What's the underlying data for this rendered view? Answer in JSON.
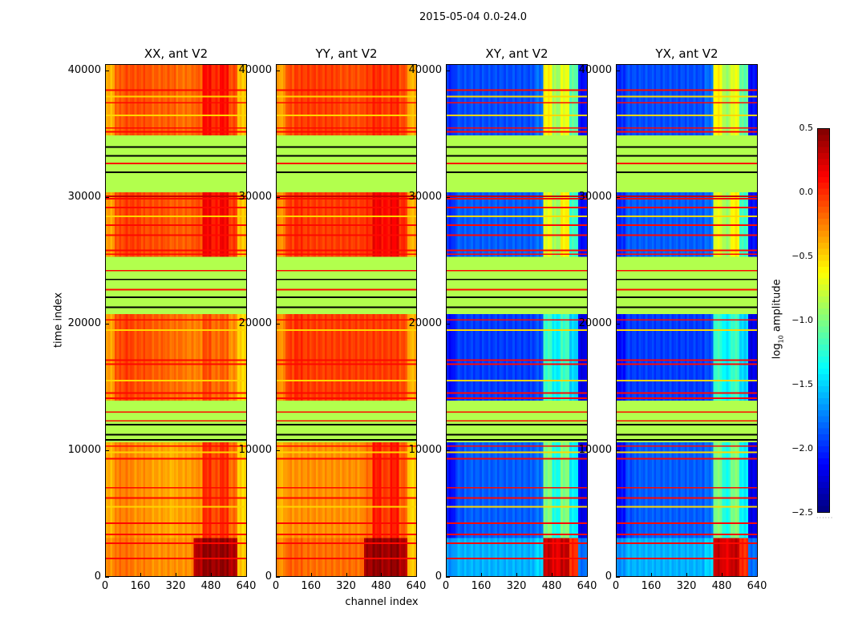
{
  "chart_data": {
    "type": "heatmap",
    "title": "2015-05-04 0.0-24.0",
    "xlabel": "channel index",
    "ylabel": "time index",
    "xlim": [
      0,
      640
    ],
    "ylim": [
      0,
      40500
    ],
    "xticks": [
      0,
      160,
      320,
      480,
      640
    ],
    "yticks": [
      0,
      10000,
      20000,
      30000,
      40000
    ],
    "channel_block": 40,
    "flag_value": -0.85,
    "segments": [
      {
        "t": [
          34900,
          40500
        ],
        "kind": "data",
        "id": "A"
      },
      {
        "t": [
          30400,
          34900
        ],
        "kind": "flag"
      },
      {
        "t": [
          25300,
          30400
        ],
        "kind": "data",
        "id": "B"
      },
      {
        "t": [
          20750,
          25300
        ],
        "kind": "flag"
      },
      {
        "t": [
          13900,
          20750
        ],
        "kind": "data",
        "id": "C"
      },
      {
        "t": [
          10600,
          13900
        ],
        "kind": "flag"
      },
      {
        "t": [
          3000,
          10600
        ],
        "kind": "data",
        "id": "D"
      },
      {
        "t": [
          0,
          3000
        ],
        "kind": "data",
        "id": "E"
      }
    ],
    "panels": [
      {
        "title": "XX, ant V2",
        "profiles": {
          "A": [
            -0.4,
            -0.15,
            -0.1,
            -0.1,
            -0.1,
            -0.15,
            -0.15,
            -0.15,
            -0.2,
            -0.2,
            -0.15,
            0.1,
            0.0,
            0.1,
            -0.1,
            -0.45
          ],
          "B": [
            -0.35,
            -0.1,
            -0.05,
            -0.05,
            -0.1,
            -0.1,
            -0.1,
            -0.15,
            -0.15,
            -0.15,
            -0.1,
            0.15,
            0.05,
            0.15,
            -0.05,
            -0.45
          ],
          "C": [
            -0.35,
            -0.1,
            -0.05,
            -0.1,
            -0.1,
            -0.15,
            -0.15,
            -0.2,
            -0.2,
            -0.25,
            -0.25,
            -0.1,
            -0.2,
            -0.15,
            -0.3,
            -0.5
          ],
          "D": [
            -0.4,
            -0.25,
            -0.25,
            -0.3,
            -0.3,
            -0.35,
            -0.35,
            -0.4,
            -0.35,
            -0.35,
            -0.3,
            0.0,
            -0.1,
            0.0,
            -0.2,
            -0.5
          ],
          "E": [
            -0.3,
            -0.2,
            -0.2,
            -0.25,
            -0.25,
            -0.3,
            -0.3,
            -0.3,
            -0.3,
            -0.3,
            0.35,
            0.45,
            0.4,
            0.45,
            0.35,
            -0.45
          ]
        }
      },
      {
        "title": "YY, ant V2",
        "profiles": {
          "A": [
            -0.35,
            -0.1,
            -0.05,
            -0.05,
            -0.05,
            -0.05,
            -0.05,
            -0.1,
            -0.1,
            -0.1,
            -0.05,
            0.0,
            -0.05,
            0.0,
            -0.1,
            -0.4
          ],
          "B": [
            -0.3,
            -0.05,
            0.0,
            -0.05,
            -0.05,
            -0.05,
            -0.05,
            -0.05,
            -0.05,
            -0.05,
            0.0,
            0.15,
            0.1,
            0.15,
            0.0,
            -0.4
          ],
          "C": [
            -0.3,
            -0.05,
            0.0,
            -0.05,
            -0.05,
            -0.05,
            -0.05,
            -0.05,
            -0.05,
            -0.05,
            -0.05,
            -0.05,
            -0.05,
            -0.05,
            -0.1,
            -0.4
          ],
          "D": [
            -0.4,
            -0.3,
            -0.3,
            -0.3,
            -0.3,
            -0.3,
            -0.3,
            -0.3,
            -0.3,
            -0.3,
            -0.2,
            0.05,
            -0.05,
            0.05,
            -0.15,
            -0.5
          ],
          "E": [
            -0.3,
            -0.15,
            -0.15,
            -0.2,
            -0.2,
            -0.2,
            -0.2,
            -0.2,
            -0.2,
            -0.2,
            0.4,
            0.45,
            0.4,
            0.45,
            0.35,
            -0.45
          ]
        }
      },
      {
        "title": "XY, ant V2",
        "profiles": {
          "A": [
            -2.0,
            -1.9,
            -1.9,
            -1.9,
            -1.9,
            -1.9,
            -1.9,
            -1.9,
            -1.9,
            -1.9,
            -1.8,
            -0.6,
            -0.9,
            -0.7,
            -1.1,
            -2.1
          ],
          "B": [
            -2.0,
            -1.85,
            -1.85,
            -1.85,
            -1.85,
            -1.85,
            -1.85,
            -1.85,
            -1.85,
            -1.85,
            -1.8,
            -0.7,
            -0.9,
            -0.6,
            -1.2,
            -2.1
          ],
          "C": [
            -2.1,
            -1.95,
            -1.95,
            -1.95,
            -1.95,
            -1.95,
            -1.95,
            -1.95,
            -1.95,
            -1.95,
            -1.9,
            -1.2,
            -1.4,
            -1.2,
            -1.5,
            -2.2
          ],
          "D": [
            -2.1,
            -1.9,
            -1.85,
            -1.85,
            -1.85,
            -1.85,
            -1.85,
            -1.85,
            -1.85,
            -1.85,
            -1.8,
            -1.0,
            -1.3,
            -1.0,
            -1.4,
            -2.2
          ],
          "E": [
            -1.7,
            -1.6,
            -1.6,
            -1.6,
            -1.6,
            -1.6,
            -1.6,
            -1.6,
            -1.6,
            -1.6,
            -1.5,
            0.3,
            0.2,
            0.3,
            0.0,
            -1.8
          ]
        }
      },
      {
        "title": "YX, ant V2",
        "profiles": {
          "A": [
            -2.0,
            -1.9,
            -1.9,
            -1.9,
            -1.9,
            -1.9,
            -1.9,
            -1.9,
            -1.9,
            -1.9,
            -1.8,
            -0.6,
            -0.9,
            -0.7,
            -1.1,
            -2.1
          ],
          "B": [
            -2.0,
            -1.85,
            -1.85,
            -1.85,
            -1.85,
            -1.85,
            -1.85,
            -1.85,
            -1.85,
            -1.85,
            -1.8,
            -0.7,
            -0.9,
            -0.6,
            -1.2,
            -2.1
          ],
          "C": [
            -2.1,
            -1.95,
            -1.95,
            -1.95,
            -1.95,
            -1.95,
            -1.95,
            -1.95,
            -1.95,
            -1.95,
            -1.9,
            -1.2,
            -1.4,
            -1.2,
            -1.5,
            -2.2
          ],
          "D": [
            -2.1,
            -1.9,
            -1.85,
            -1.85,
            -1.85,
            -1.85,
            -1.85,
            -1.85,
            -1.85,
            -1.85,
            -1.8,
            -1.0,
            -1.3,
            -1.0,
            -1.4,
            -2.2
          ],
          "E": [
            -1.7,
            -1.6,
            -1.6,
            -1.6,
            -1.6,
            -1.6,
            -1.6,
            -1.6,
            -1.6,
            -1.6,
            -1.5,
            0.3,
            0.2,
            0.3,
            0.0,
            -1.8
          ]
        }
      }
    ],
    "horizontal_lines": [
      {
        "t": 38500,
        "value": 0.1
      },
      {
        "t": 37500,
        "value": 0.1
      },
      {
        "t": 35500,
        "value": 0.1
      },
      {
        "t": 35200,
        "value": 0.1
      },
      {
        "t": 32700,
        "value": 0.1
      },
      {
        "t": 30100,
        "value": 0.3
      },
      {
        "t": 29900,
        "value": 0.1
      },
      {
        "t": 29200,
        "value": 0.1
      },
      {
        "t": 27800,
        "value": 0.1
      },
      {
        "t": 27000,
        "value": 0.1
      },
      {
        "t": 25800,
        "value": 0.1
      },
      {
        "t": 25500,
        "value": 0.1
      },
      {
        "t": 24200,
        "value": 0.1
      },
      {
        "t": 22700,
        "value": 0.1
      },
      {
        "t": 20300,
        "value": 0.1
      },
      {
        "t": 17100,
        "value": 0.1
      },
      {
        "t": 16800,
        "value": 0.1
      },
      {
        "t": 14500,
        "value": 0.1
      },
      {
        "t": 14100,
        "value": 0.1
      },
      {
        "t": 13000,
        "value": 0.1
      },
      {
        "t": 12300,
        "value": 0.1
      },
      {
        "t": 10300,
        "value": 0.1
      },
      {
        "t": 9300,
        "value": 0.1
      },
      {
        "t": 7000,
        "value": 0.1
      },
      {
        "t": 6200,
        "value": 0.1
      },
      {
        "t": 4200,
        "value": 0.1
      },
      {
        "t": 3300,
        "value": 0.1
      },
      {
        "t": 2600,
        "value": 0.1
      },
      {
        "t": 1400,
        "value": 0.1
      },
      {
        "t": 38000,
        "value": -0.5
      },
      {
        "t": 36500,
        "value": -0.5
      },
      {
        "t": 28500,
        "value": -0.5
      },
      {
        "t": 19500,
        "value": -0.5
      },
      {
        "t": 15500,
        "value": -0.5
      },
      {
        "t": 9800,
        "value": -0.5
      },
      {
        "t": 5500,
        "value": -0.5
      },
      {
        "t": 34000,
        "value": null
      },
      {
        "t": 33300,
        "value": null
      },
      {
        "t": 32000,
        "value": null
      },
      {
        "t": 23500,
        "value": null
      },
      {
        "t": 22100,
        "value": null
      },
      {
        "t": 21300,
        "value": null
      },
      {
        "t": 12000,
        "value": null
      },
      {
        "t": 11200,
        "value": null
      },
      {
        "t": 10800,
        "value": null
      }
    ],
    "colorbar": {
      "label_prefix": "log",
      "label_sub": "10",
      "label_suffix": " amplitude",
      "range": [
        -2.5,
        0.5
      ],
      "ticks": [
        0.5,
        0.0,
        -0.5,
        -1.0,
        -1.5,
        -2.0,
        -2.5
      ],
      "tick_labels": [
        "0.5",
        "0.0",
        "−0.5",
        "−1.0",
        "−1.5",
        "−2.0",
        "−2.5"
      ],
      "colormap": "jet"
    }
  }
}
